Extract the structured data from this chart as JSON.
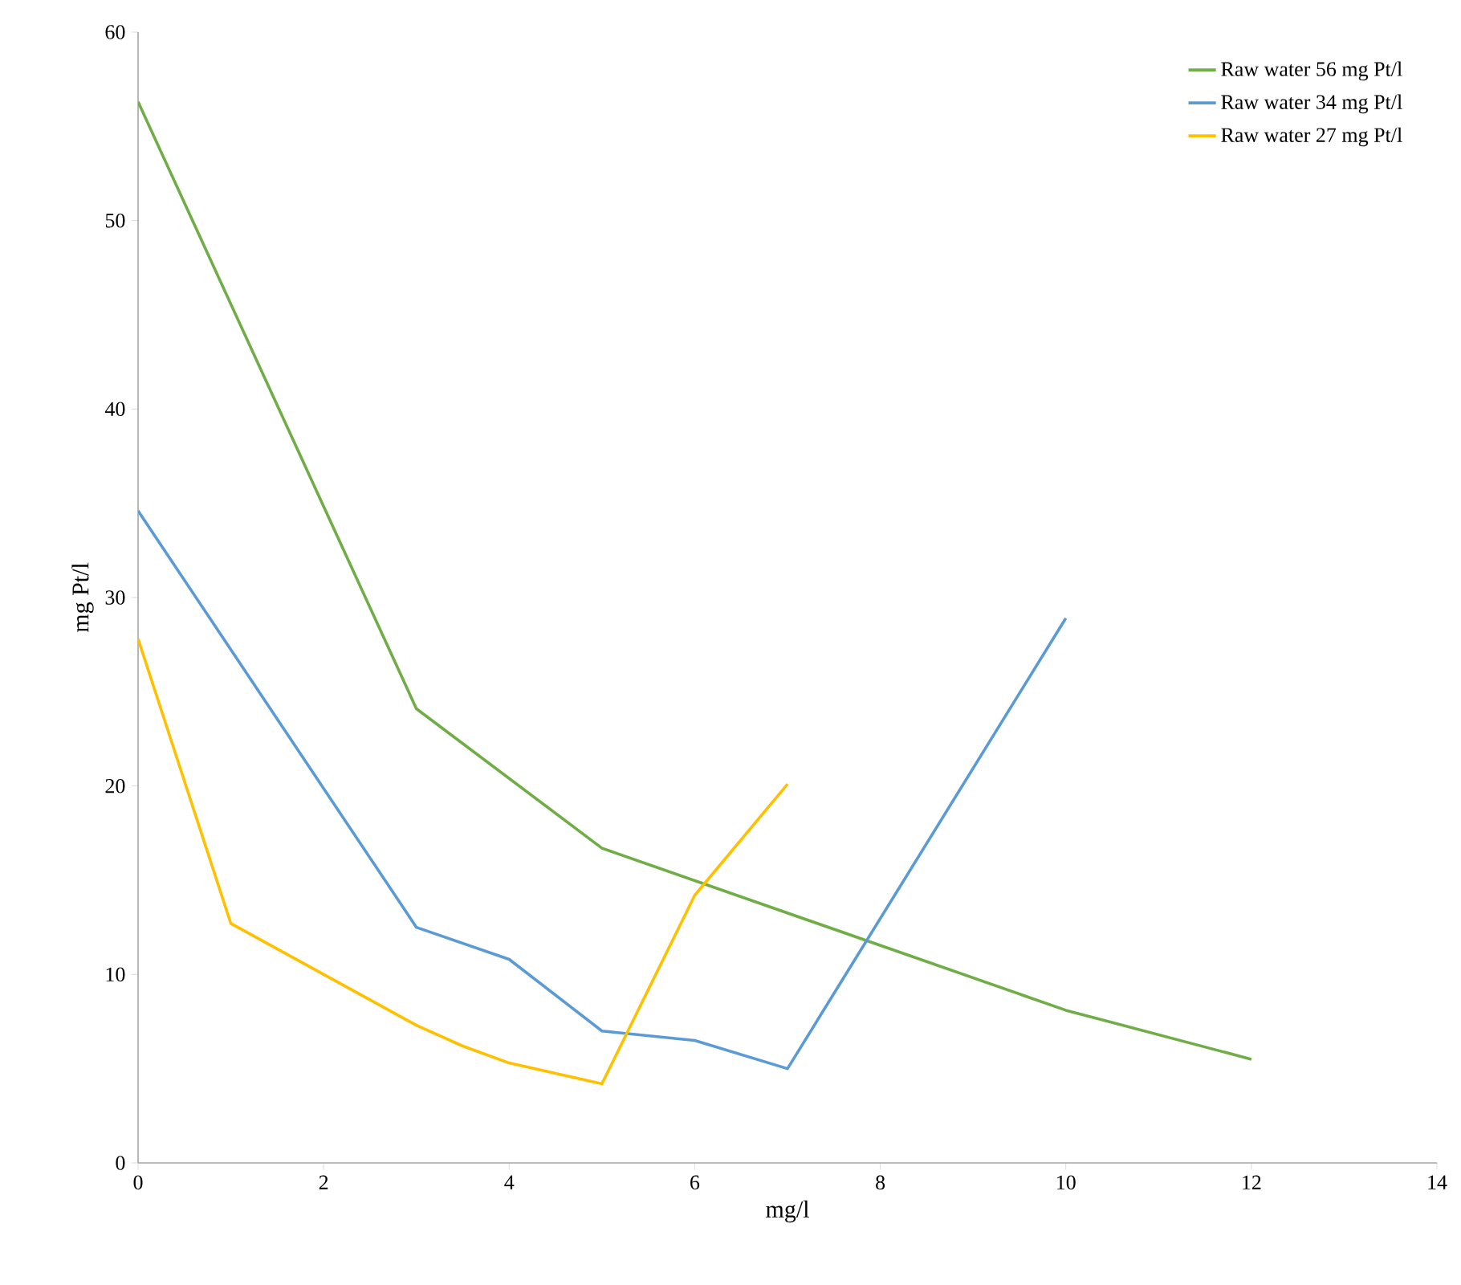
{
  "chart_data": {
    "type": "line",
    "xlabel": "mg/l",
    "ylabel": "mg Pt/l",
    "xlim": [
      0,
      14
    ],
    "xticks": [
      0,
      2,
      4,
      6,
      8,
      10,
      12,
      14
    ],
    "ylim": [
      0,
      60
    ],
    "yticks": [
      0,
      10,
      20,
      30,
      40,
      50,
      60
    ],
    "legend": "top right",
    "grid": false,
    "marker": "none",
    "series": [
      {
        "name": "Raw water 56 mg Pt/l",
        "color": "#70ad47",
        "x": [
          0,
          3,
          5,
          10,
          12
        ],
        "values": [
          56.3,
          24.1,
          16.7,
          8.1,
          5.5
        ]
      },
      {
        "name": "Raw water 34 mg Pt/l",
        "color": "#5b9bd5",
        "x": [
          0,
          3,
          4,
          5,
          6,
          7,
          10
        ],
        "values": [
          34.6,
          12.5,
          10.8,
          7.0,
          6.5,
          5.0,
          28.9
        ]
      },
      {
        "name": "Raw water 27 mg Pt/l",
        "color": "#ffc000",
        "x": [
          0,
          1,
          3,
          3.5,
          4,
          5,
          6,
          7
        ],
        "values": [
          27.8,
          12.7,
          7.3,
          6.2,
          5.3,
          4.2,
          14.2,
          20.1
        ]
      }
    ]
  }
}
